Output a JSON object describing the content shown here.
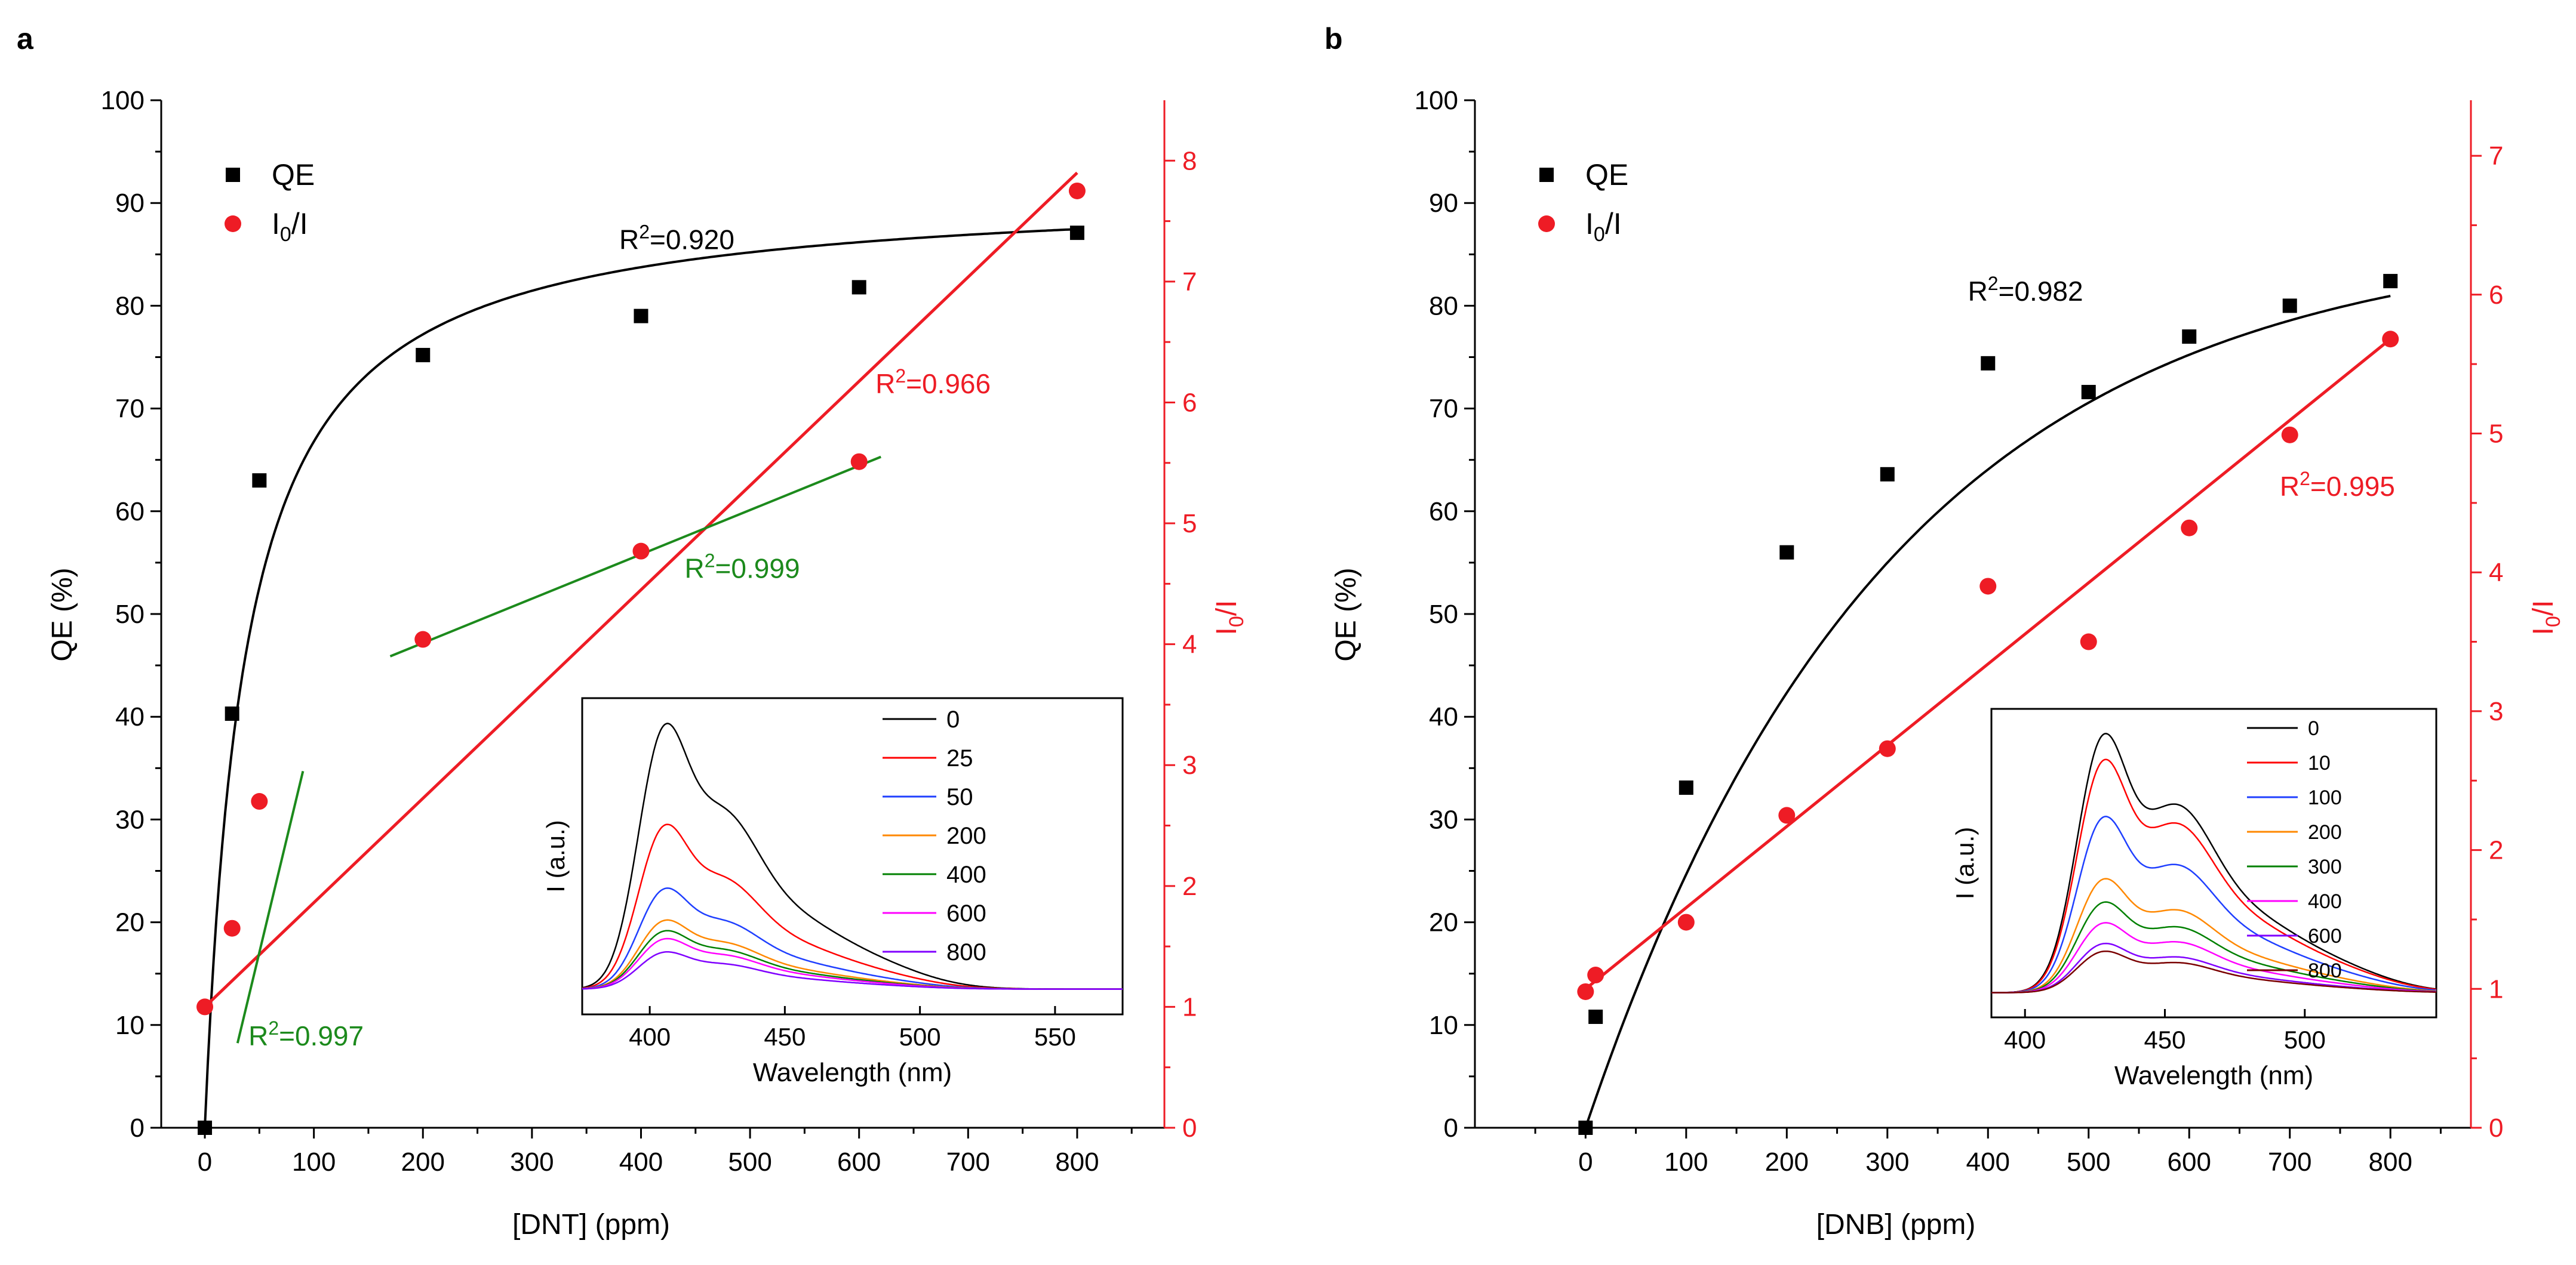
{
  "colors": {
    "black": "#000000",
    "red": "#ee1c25",
    "green": "#1c8a1c",
    "spectra": [
      "#000000",
      "#ff0000",
      "#1f3fff",
      "#ff8800",
      "#008000",
      "#ff00ff",
      "#8000ff",
      "#7a0000",
      "#808000",
      "#000080"
    ]
  },
  "chart_data": [
    {
      "panel": "a",
      "type": "scatter",
      "xlabel": "[DNT] (ppm)",
      "ylabel": "QE (%)",
      "y2label_main": "I",
      "y2label_sub": "0",
      "y2label_end": "/I",
      "xlim": [
        -40,
        880
      ],
      "ylim": [
        0,
        100
      ],
      "y2lim": [
        0,
        8.5
      ],
      "x_ticks": [
        0,
        100,
        200,
        300,
        400,
        500,
        600,
        700,
        800
      ],
      "y_ticks": [
        0,
        10,
        20,
        30,
        40,
        50,
        60,
        70,
        80,
        90,
        100
      ],
      "y2_ticks": [
        0,
        1,
        2,
        3,
        4,
        5,
        6,
        7,
        8
      ],
      "legend": [
        {
          "main": "QE",
          "sub": "",
          "end": ""
        },
        {
          "main": "I",
          "sub": "0",
          "end": "/I"
        }
      ],
      "series": [
        {
          "name": "QE",
          "axis": "y",
          "marker": "square",
          "color": "black",
          "x": [
            0,
            25,
            50,
            200,
            400,
            600,
            800
          ],
          "y": [
            0,
            40.3,
            63,
            75.2,
            79,
            81.8,
            87.1
          ]
        },
        {
          "name": "I0/I",
          "axis": "y2",
          "marker": "circle",
          "color": "red",
          "x": [
            0,
            25,
            50,
            200,
            400,
            600,
            800
          ],
          "y": [
            1.0,
            1.65,
            2.7,
            4.04,
            4.77,
            5.51,
            7.75
          ]
        }
      ],
      "fits": [
        {
          "kind": "hyperbolic",
          "axis": "y",
          "color": "black",
          "vmax": 91.5,
          "k": 37,
          "xrange": [
            0,
            800
          ],
          "label_main": "R",
          "label_sup": "2",
          "label_end": "=0.920",
          "label_pos": [
            380,
            85.5
          ]
        },
        {
          "kind": "linear",
          "axis": "y2",
          "color": "red",
          "points": [
            [
              0,
              1.0
            ],
            [
              800,
              7.9
            ]
          ],
          "label_main": "R",
          "label_sup": "2",
          "label_end": "=0.966",
          "label_pos": [
            615,
            71.5
          ]
        },
        {
          "kind": "linear",
          "axis": "y2",
          "color": "green",
          "points": [
            [
              170,
              3.9
            ],
            [
              620,
              5.55
            ]
          ],
          "label_main": "R",
          "label_sup": "2",
          "label_end": "=0.999",
          "label_pos": [
            440,
            53.5
          ]
        },
        {
          "kind": "linear",
          "axis": "y2",
          "color": "green",
          "points": [
            [
              30,
              0.7
            ],
            [
              90,
              2.95
            ]
          ],
          "label_main": "R",
          "label_sup": "2",
          "label_end": "=0.997",
          "label_pos": [
            40,
            8
          ]
        }
      ],
      "inset": {
        "type": "line",
        "xlabel": "Wavelength (nm)",
        "ylabel": "I (a.u.)",
        "xlim": [
          375,
          575
        ],
        "x_ticks": [
          400,
          450,
          500,
          550
        ],
        "peak_main": 404,
        "peak_shoulder": 425,
        "series": [
          {
            "name": "0",
            "amp": 1.0
          },
          {
            "name": "25",
            "amp": 0.62
          },
          {
            "name": "50",
            "amp": 0.38
          },
          {
            "name": "200",
            "amp": 0.26
          },
          {
            "name": "400",
            "amp": 0.22
          },
          {
            "name": "600",
            "amp": 0.19
          },
          {
            "name": "800",
            "amp": 0.14
          }
        ]
      }
    },
    {
      "panel": "b",
      "type": "scatter",
      "xlabel": "[DNB] (ppm)",
      "ylabel": "QE (%)",
      "y2label_main": "I",
      "y2label_sub": "0",
      "y2label_end": "/I",
      "xlim": [
        -110,
        880
      ],
      "ylim": [
        0,
        100
      ],
      "y2lim": [
        0,
        7.4
      ],
      "x_ticks": [
        0,
        100,
        200,
        300,
        400,
        500,
        600,
        700,
        800
      ],
      "y_ticks": [
        0,
        10,
        20,
        30,
        40,
        50,
        60,
        70,
        80,
        90,
        100
      ],
      "y2_ticks": [
        0,
        1,
        2,
        3,
        4,
        5,
        6,
        7
      ],
      "legend": [
        {
          "main": "QE",
          "sub": "",
          "end": ""
        },
        {
          "main": "I",
          "sub": "0",
          "end": "/I"
        }
      ],
      "series": [
        {
          "name": "QE",
          "axis": "y",
          "marker": "square",
          "color": "black",
          "x": [
            0,
            10,
            100,
            200,
            300,
            400,
            500,
            600,
            700,
            800
          ],
          "y": [
            0,
            10.8,
            33.1,
            56,
            63.6,
            74.4,
            71.6,
            77,
            80,
            82.4
          ]
        },
        {
          "name": "I0/I",
          "axis": "y2",
          "marker": "circle",
          "color": "red",
          "x": [
            0,
            10,
            100,
            200,
            300,
            400,
            500,
            600,
            700,
            800
          ],
          "y": [
            0.98,
            1.1,
            1.48,
            2.25,
            2.73,
            3.9,
            3.5,
            4.32,
            4.99,
            5.68
          ]
        },
        {
          "name": "I0/I",
          "axis": "y2",
          "marker": "none",
          "color": "red",
          "x": [],
          "y": []
        }
      ],
      "fits": [
        {
          "kind": "exponential",
          "axis": "y",
          "color": "black",
          "a": 87,
          "t": 300,
          "xrange": [
            0,
            800
          ],
          "label_main": "R",
          "label_sup": "2",
          "label_end": "=0.982",
          "label_pos": [
            380,
            80.5
          ]
        },
        {
          "kind": "linear",
          "axis": "y2",
          "color": "red",
          "points": [
            [
              0,
              1.0
            ],
            [
              800,
              5.68
            ]
          ],
          "label_main": "R",
          "label_sup": "2",
          "label_end": "=0.995",
          "label_pos": [
            690,
            61.5
          ]
        }
      ],
      "inset": {
        "type": "line",
        "xlabel": "Wavelength (nm)",
        "ylabel": "I (a.u.)",
        "xlim": [
          388,
          547
        ],
        "x_ticks": [
          400,
          450,
          500
        ],
        "peak_main": 427,
        "peak_shoulder": 452,
        "series": [
          {
            "name": "0",
            "amp": 1.0
          },
          {
            "name": "10",
            "amp": 0.9
          },
          {
            "name": "100",
            "amp": 0.68
          },
          {
            "name": "200",
            "amp": 0.44
          },
          {
            "name": "300",
            "amp": 0.35
          },
          {
            "name": "400",
            "amp": 0.27
          },
          {
            "name": "600",
            "amp": 0.19
          },
          {
            "name": "800",
            "amp": 0.16
          }
        ]
      }
    }
  ]
}
